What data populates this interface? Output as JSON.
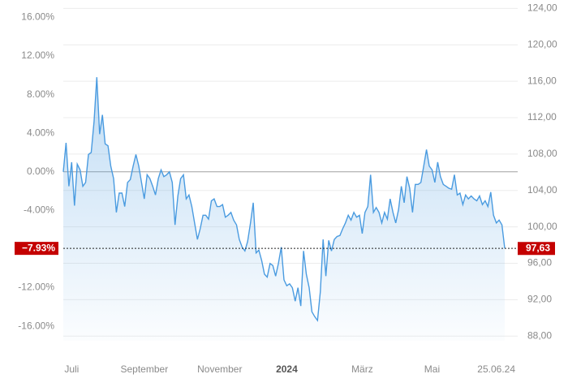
{
  "chart_data": {
    "type": "line",
    "xlim": [
      0,
      158
    ],
    "xticks": [
      {
        "value": 3,
        "label": "Juli"
      },
      {
        "value": 29,
        "label": "September"
      },
      {
        "value": 56,
        "label": "November"
      },
      {
        "value": 80,
        "label": "2024"
      },
      {
        "value": 107,
        "label": "März"
      },
      {
        "value": 132,
        "label": "Mai"
      },
      {
        "value": 155,
        "label": "25.06.24"
      }
    ],
    "ylim": [
      -17.5,
      17.8
    ],
    "yticks": [
      {
        "value": 16,
        "label": "16.00%"
      },
      {
        "value": 12,
        "label": "12.00%"
      },
      {
        "value": 8,
        "label": "8.00%"
      },
      {
        "value": 4,
        "label": "4.00%"
      },
      {
        "value": 0,
        "label": "0.00%"
      },
      {
        "value": -4,
        "label": "-4.00%"
      },
      {
        "value": -8,
        "label": "-8.00%"
      },
      {
        "value": -12,
        "label": "-12.00%"
      },
      {
        "value": -16,
        "label": "-16.00%"
      }
    ],
    "y2lim": [
      87.49,
      124.93
    ],
    "y2ticks": [
      {
        "value": 124,
        "label": "124,00"
      },
      {
        "value": 120,
        "label": "120,00"
      },
      {
        "value": 116,
        "label": "116,00"
      },
      {
        "value": 112,
        "label": "112,00"
      },
      {
        "value": 108,
        "label": "108,00"
      },
      {
        "value": 104,
        "label": "104,00"
      },
      {
        "value": 100,
        "label": "100,00"
      },
      {
        "value": 96,
        "label": "96,00"
      },
      {
        "value": 92,
        "label": "92,00"
      },
      {
        "value": 88,
        "label": "88,00"
      }
    ],
    "grid": true,
    "series": [
      {
        "color": "#4a9be0",
        "values": [
          0,
          3.0,
          -1.5,
          1.0,
          -3.5,
          0.8,
          0.2,
          -1.5,
          -1.1,
          1.8,
          2.0,
          5.2,
          9.8,
          3.9,
          5.9,
          2.9,
          2.7,
          0.6,
          -0.7,
          -4.2,
          -2.2,
          -2.2,
          -3.6,
          -1.1,
          -0.8,
          0.6,
          1.8,
          0.6,
          -1.1,
          -2.8,
          -0.3,
          -0.7,
          -1.5,
          -2.4,
          -0.7,
          0.2,
          -0.5,
          -0.3,
          0,
          -1.1,
          -5.5,
          -2.5,
          -0.7,
          -0.3,
          -2.8,
          -2.4,
          -3.6,
          -5.3,
          -7.0,
          -5.9,
          -4.5,
          -4.5,
          -4.9,
          -3.0,
          -2.8,
          -3.6,
          -3.6,
          -3.4,
          -4.7,
          -4.5,
          -4.2,
          -5.0,
          -5.5,
          -7.0,
          -7.8,
          -8.2,
          -7.2,
          -5.3,
          -3.2,
          -8.4,
          -8.1,
          -9.2,
          -10.6,
          -10.9,
          -9.5,
          -9.7,
          -10.8,
          -9.5,
          -7.8,
          -11.2,
          -11.8,
          -11.6,
          -12.0,
          -13.4,
          -12.0,
          -13.9,
          -8.2,
          -10.6,
          -12.0,
          -14.5,
          -15.0,
          -15.4,
          -12.4,
          -7.0,
          -10.8,
          -7.1,
          -8.2,
          -7.0,
          -6.7,
          -6.6,
          -5.9,
          -5.3,
          -4.5,
          -5.0,
          -4.2,
          -4.7,
          -4.5,
          -6.4,
          -4.2,
          -3.6,
          -0.3,
          -4.2,
          -3.7,
          -4.2,
          -5.3,
          -4.2,
          -4.9,
          -2.8,
          -4.2,
          -5.3,
          -3.9,
          -1.5,
          -3.2,
          -0.5,
          -1.7,
          -4.2,
          -1.3,
          -1.3,
          -1.1,
          0.6,
          2.3,
          0.6,
          0.2,
          -1.1,
          1.0,
          -0.5,
          -1.3,
          -1.5,
          -1.7,
          -1.8,
          -0.3,
          -2.4,
          -2.2,
          -3.4,
          -2.4,
          -2.8,
          -2.5,
          -2.8,
          -3.0,
          -2.5,
          -3.4,
          -3.0,
          -3.6,
          -2.1,
          -4.5,
          -5.3,
          -5.0,
          -5.5,
          -7.93
        ]
      }
    ],
    "last_value": {
      "value": -7.93,
      "label": "−7.93%"
    },
    "last_price": {
      "value": 97.63,
      "label": "97,63"
    }
  }
}
